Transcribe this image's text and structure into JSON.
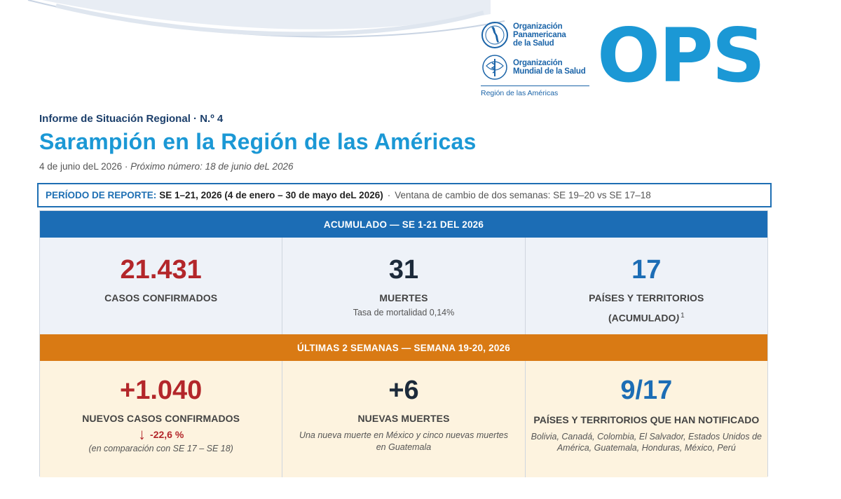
{
  "brand": {
    "paho_line1": "Organización",
    "paho_line2": "Panamericana",
    "paho_line3": "de la Salud",
    "who_line1": "Organización",
    "who_line2": "Mundial de la Salud",
    "region": "Región de las Américas",
    "ops": "OPS",
    "ops_color": "#1b98d5"
  },
  "report": {
    "kicker": "Informe de Situación Regional  · N.º 4",
    "title": "Sarampión en la Región de las Américas",
    "date": "4 de junio deL 2026  ·  ",
    "next": "Próximo número: 18 de junio deL 2026"
  },
  "period": {
    "label": "PERÍODO DE REPORTE:",
    "value": "SE 1–21, 2026 (4 de enero  – 30 de mayo deL 2026)",
    "sep": "·",
    "window": "Ventana de cambio de dos semanas: SE 19–20 vs SE 17–18"
  },
  "cumulative": {
    "band": "ACUMULADO — SE 1-21 DEL 2026",
    "cases_value": "21.431",
    "cases_label": "CASOS CONFIRMADOS",
    "deaths_value": "31",
    "deaths_label": "MUERTES",
    "deaths_note": "Tasa de mortalidad 0,14%",
    "countries_value": "17",
    "countries_label1": "PAÍSES Y TERRITORIOS",
    "countries_label2": "(ACUMULADO",
    "countries_paren": ")",
    "countries_sup": "1"
  },
  "recent": {
    "band": "ÚLTIMAS 2 SEMANAS — SEMANA 19-20, 2026",
    "cases_value": "+1.040",
    "cases_label": "NUEVOS CASOS CONFIRMADOS",
    "arrow": "↓",
    "change": "-22,6 %",
    "compare": "(en comparación con SE 17 – SE 18)",
    "deaths_value": "+6",
    "deaths_label": "NUEVAS MUERTES",
    "deaths_note": "Una nueva muerte en México y cinco nuevas muertes en Guatemala",
    "countries_value": "9/17",
    "countries_label": "PAÍSES Y TERRITORIOS QUE HAN NOTIFICADO",
    "countries_list": "Bolivia, Canadá, Colombia, El Salvador, Estados Unidos de América, Guatemala, Honduras, México, Perú"
  },
  "colors": {
    "blue_band": "#1c6db5",
    "orange_band": "#d97a14",
    "red_value": "#b3262a",
    "title_blue": "#1b98d5"
  }
}
